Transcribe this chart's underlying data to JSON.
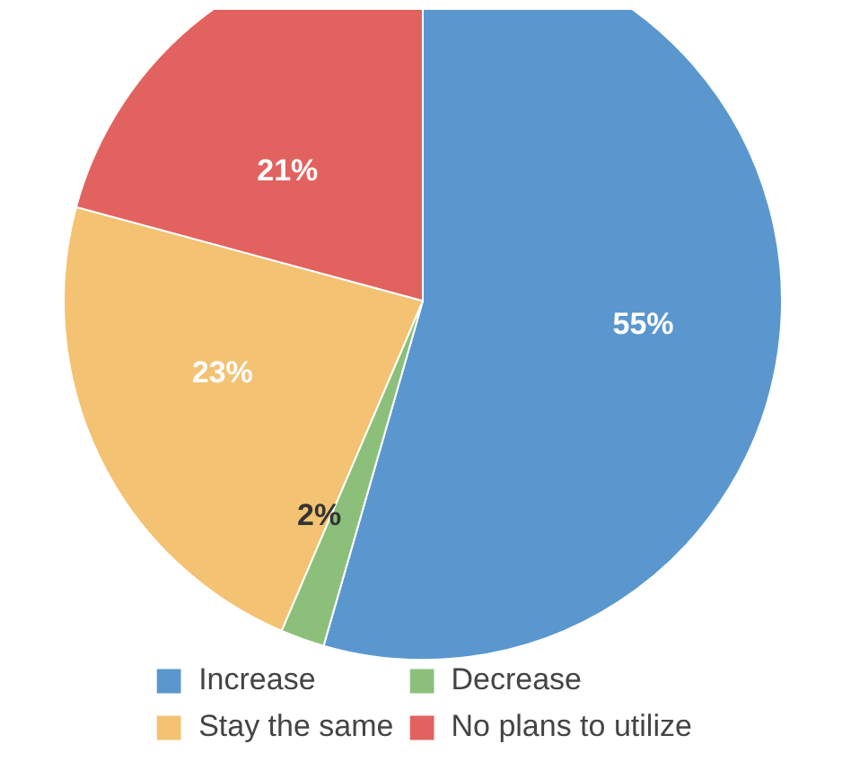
{
  "chart_data": {
    "type": "pie",
    "categories": [
      "Increase",
      "Decrease",
      "Stay the same",
      "No plans to utilize"
    ],
    "values": [
      55,
      2,
      23,
      21
    ],
    "colors": [
      "#5b97cf",
      "#8cc07a",
      "#f3c272",
      "#e2625f"
    ],
    "value_labels": [
      "55%",
      "2%",
      "23%",
      "21%"
    ],
    "legend": "bottom"
  }
}
